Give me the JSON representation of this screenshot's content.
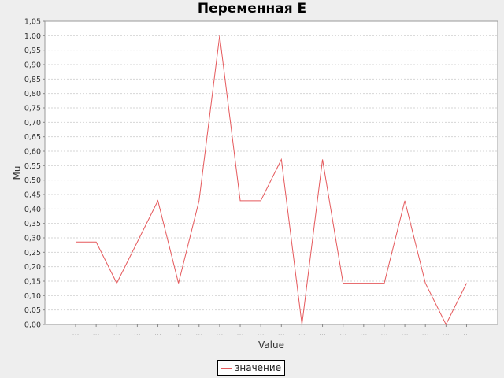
{
  "chart_data": {
    "type": "line",
    "title": "Переменная E",
    "xlabel": "Value",
    "ylabel": "Mu",
    "ylim": [
      0,
      1.05
    ],
    "y_tick_step": 0.05,
    "grid": true,
    "legend_position": "bottom",
    "categories": [
      "...",
      "...",
      "...",
      "...",
      "...",
      "...",
      "...",
      "...",
      "...",
      "...",
      "...",
      "...",
      "...",
      "...",
      "...",
      "...",
      "...",
      "...",
      "...",
      "..."
    ],
    "series": [
      {
        "name": "значение",
        "color": "#e5595c",
        "values": [
          0.2857,
          0.2857,
          0.1429,
          null,
          0.4286,
          0.1429,
          0.4286,
          1.0,
          0.4286,
          0.4286,
          0.5714,
          0.0,
          0.5714,
          0.1429,
          0.1429,
          0.1429,
          0.4286,
          0.1429,
          0.0,
          0.1429
        ]
      }
    ]
  }
}
